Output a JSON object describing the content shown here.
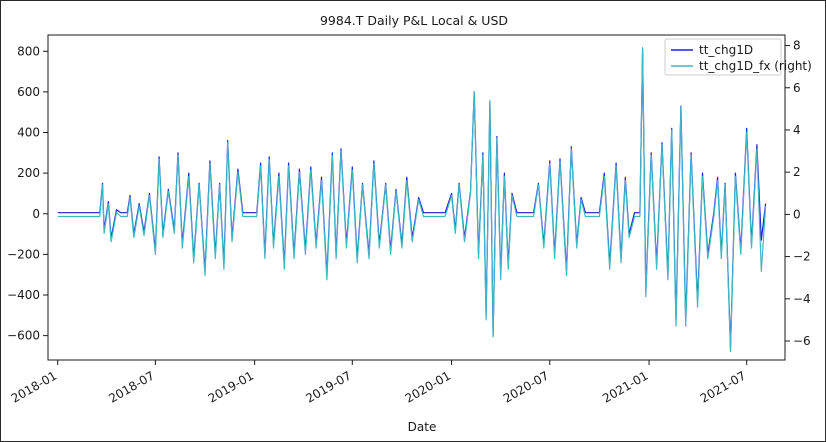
{
  "chart_data": {
    "type": "line",
    "title": "9984.T Daily P&L Local & USD",
    "xlabel": "Date",
    "ylabel": "",
    "ylim": [
      -720,
      880
    ],
    "y2lim": [
      -6.9,
      8.5
    ],
    "y_ticks": [
      "800",
      "600",
      "400",
      "200",
      "0",
      "−200",
      "−400",
      "−600"
    ],
    "y2_ticks": [
      "8",
      "6",
      "4",
      "2",
      "0",
      "−2",
      "−4",
      "−6"
    ],
    "x_ticks": [
      "2018-01",
      "2018-07",
      "2019-01",
      "2019-07",
      "2020-01",
      "2020-07",
      "2021-01",
      "2021-07"
    ],
    "legend": "top-right",
    "grid": false,
    "series": [
      {
        "name": "tt_chg1D",
        "axis": "left",
        "color": "#1f1fd8",
        "points": [
          [
            "2018-01-01",
            5
          ],
          [
            "2018-03-20",
            5
          ],
          [
            "2018-03-25",
            150
          ],
          [
            "2018-03-28",
            -80
          ],
          [
            "2018-04-05",
            60
          ],
          [
            "2018-04-10",
            -120
          ],
          [
            "2018-04-20",
            20
          ],
          [
            "2018-04-28",
            5
          ],
          [
            "2018-05-10",
            5
          ],
          [
            "2018-05-15",
            90
          ],
          [
            "2018-05-22",
            -100
          ],
          [
            "2018-06-01",
            50
          ],
          [
            "2018-06-10",
            -90
          ],
          [
            "2018-06-20",
            100
          ],
          [
            "2018-07-01",
            -180
          ],
          [
            "2018-07-08",
            280
          ],
          [
            "2018-07-15",
            -100
          ],
          [
            "2018-07-25",
            120
          ],
          [
            "2018-08-05",
            -80
          ],
          [
            "2018-08-12",
            300
          ],
          [
            "2018-08-20",
            -150
          ],
          [
            "2018-09-01",
            200
          ],
          [
            "2018-09-10",
            -220
          ],
          [
            "2018-09-20",
            150
          ],
          [
            "2018-10-01",
            -280
          ],
          [
            "2018-10-10",
            260
          ],
          [
            "2018-10-20",
            -200
          ],
          [
            "2018-10-28",
            150
          ],
          [
            "2018-11-05",
            -250
          ],
          [
            "2018-11-12",
            360
          ],
          [
            "2018-11-20",
            -120
          ],
          [
            "2018-12-01",
            220
          ],
          [
            "2018-12-10",
            5
          ],
          [
            "2019-01-05",
            5
          ],
          [
            "2019-01-12",
            250
          ],
          [
            "2019-01-20",
            -200
          ],
          [
            "2019-01-28",
            280
          ],
          [
            "2019-02-05",
            -150
          ],
          [
            "2019-02-15",
            200
          ],
          [
            "2019-02-25",
            -250
          ],
          [
            "2019-03-05",
            250
          ],
          [
            "2019-03-15",
            -200
          ],
          [
            "2019-03-25",
            220
          ],
          [
            "2019-04-05",
            -180
          ],
          [
            "2019-04-15",
            230
          ],
          [
            "2019-04-25",
            -150
          ],
          [
            "2019-05-05",
            180
          ],
          [
            "2019-05-15",
            -300
          ],
          [
            "2019-05-25",
            300
          ],
          [
            "2019-06-01",
            -200
          ],
          [
            "2019-06-10",
            320
          ],
          [
            "2019-06-20",
            -150
          ],
          [
            "2019-07-01",
            230
          ],
          [
            "2019-07-10",
            -220
          ],
          [
            "2019-07-20",
            150
          ],
          [
            "2019-08-01",
            -200
          ],
          [
            "2019-08-10",
            260
          ],
          [
            "2019-08-20",
            -150
          ],
          [
            "2019-09-01",
            150
          ],
          [
            "2019-09-10",
            -180
          ],
          [
            "2019-09-20",
            120
          ],
          [
            "2019-10-01",
            -150
          ],
          [
            "2019-10-10",
            180
          ],
          [
            "2019-10-20",
            -120
          ],
          [
            "2019-11-01",
            80
          ],
          [
            "2019-11-10",
            5
          ],
          [
            "2019-12-20",
            5
          ],
          [
            "2020-01-01",
            100
          ],
          [
            "2020-01-08",
            -80
          ],
          [
            "2020-01-15",
            150
          ],
          [
            "2020-01-25",
            -120
          ],
          [
            "2020-02-05",
            110
          ],
          [
            "2020-02-12",
            600
          ],
          [
            "2020-02-20",
            -200
          ],
          [
            "2020-02-28",
            300
          ],
          [
            "2020-03-05",
            -500
          ],
          [
            "2020-03-12",
            550
          ],
          [
            "2020-03-18",
            -600
          ],
          [
            "2020-03-25",
            380
          ],
          [
            "2020-04-01",
            -300
          ],
          [
            "2020-04-08",
            200
          ],
          [
            "2020-04-15",
            -250
          ],
          [
            "2020-04-22",
            100
          ],
          [
            "2020-05-01",
            5
          ],
          [
            "2020-06-01",
            5
          ],
          [
            "2020-06-10",
            150
          ],
          [
            "2020-06-20",
            -150
          ],
          [
            "2020-07-01",
            260
          ],
          [
            "2020-07-10",
            -200
          ],
          [
            "2020-07-20",
            270
          ],
          [
            "2020-08-01",
            -280
          ],
          [
            "2020-08-10",
            330
          ],
          [
            "2020-08-20",
            -150
          ],
          [
            "2020-08-28",
            80
          ],
          [
            "2020-09-05",
            5
          ],
          [
            "2020-10-01",
            5
          ],
          [
            "2020-10-10",
            200
          ],
          [
            "2020-10-20",
            -250
          ],
          [
            "2020-11-01",
            250
          ],
          [
            "2020-11-10",
            -220
          ],
          [
            "2020-11-18",
            180
          ],
          [
            "2020-11-25",
            -100
          ],
          [
            "2020-12-05",
            5
          ],
          [
            "2020-12-15",
            5
          ],
          [
            "2020-12-20",
            810
          ],
          [
            "2020-12-26",
            -380
          ],
          [
            "2021-01-05",
            300
          ],
          [
            "2021-01-15",
            -250
          ],
          [
            "2021-01-25",
            350
          ],
          [
            "2021-02-05",
            -300
          ],
          [
            "2021-02-12",
            420
          ],
          [
            "2021-02-20",
            -520
          ],
          [
            "2021-03-01",
            530
          ],
          [
            "2021-03-10",
            -520
          ],
          [
            "2021-03-20",
            300
          ],
          [
            "2021-04-01",
            -430
          ],
          [
            "2021-04-10",
            200
          ],
          [
            "2021-04-20",
            -200
          ],
          [
            "2021-05-01",
            5
          ],
          [
            "2021-05-08",
            180
          ],
          [
            "2021-05-15",
            -200
          ],
          [
            "2021-05-22",
            150
          ],
          [
            "2021-06-01",
            -660
          ],
          [
            "2021-06-10",
            200
          ],
          [
            "2021-06-20",
            -180
          ],
          [
            "2021-07-01",
            420
          ],
          [
            "2021-07-10",
            -150
          ],
          [
            "2021-07-20",
            340
          ],
          [
            "2021-07-28",
            -130
          ],
          [
            "2021-08-05",
            50
          ]
        ]
      },
      {
        "name": "tt_chg1D_fx (right)",
        "axis": "right",
        "color": "#3fb7c4",
        "points": [
          [
            "2018-01-01",
            -0.1
          ],
          [
            "2018-03-20",
            -0.1
          ],
          [
            "2018-03-25",
            1.4
          ],
          [
            "2018-03-28",
            -0.9
          ],
          [
            "2018-04-05",
            0.5
          ],
          [
            "2018-04-10",
            -1.3
          ],
          [
            "2018-04-20",
            0.1
          ],
          [
            "2018-04-28",
            -0.1
          ],
          [
            "2018-05-10",
            -0.1
          ],
          [
            "2018-05-15",
            0.8
          ],
          [
            "2018-05-22",
            -1.1
          ],
          [
            "2018-06-01",
            0.4
          ],
          [
            "2018-06-10",
            -1.0
          ],
          [
            "2018-06-20",
            0.9
          ],
          [
            "2018-07-01",
            -1.9
          ],
          [
            "2018-07-08",
            2.6
          ],
          [
            "2018-07-15",
            -1.1
          ],
          [
            "2018-07-25",
            1.1
          ],
          [
            "2018-08-05",
            -0.9
          ],
          [
            "2018-08-12",
            2.8
          ],
          [
            "2018-08-20",
            -1.6
          ],
          [
            "2018-09-01",
            1.8
          ],
          [
            "2018-09-10",
            -2.3
          ],
          [
            "2018-09-20",
            1.4
          ],
          [
            "2018-10-01",
            -2.9
          ],
          [
            "2018-10-10",
            2.4
          ],
          [
            "2018-10-20",
            -2.1
          ],
          [
            "2018-10-28",
            1.4
          ],
          [
            "2018-11-05",
            -2.6
          ],
          [
            "2018-11-12",
            3.4
          ],
          [
            "2018-11-20",
            -1.3
          ],
          [
            "2018-12-01",
            2.0
          ],
          [
            "2018-12-10",
            -0.1
          ],
          [
            "2019-01-05",
            -0.1
          ],
          [
            "2019-01-12",
            2.3
          ],
          [
            "2019-01-20",
            -2.1
          ],
          [
            "2019-01-28",
            2.6
          ],
          [
            "2019-02-05",
            -1.6
          ],
          [
            "2019-02-15",
            1.8
          ],
          [
            "2019-02-25",
            -2.6
          ],
          [
            "2019-03-05",
            2.3
          ],
          [
            "2019-03-15",
            -2.1
          ],
          [
            "2019-03-25",
            2.0
          ],
          [
            "2019-04-05",
            -1.9
          ],
          [
            "2019-04-15",
            2.1
          ],
          [
            "2019-04-25",
            -1.6
          ],
          [
            "2019-05-05",
            1.6
          ],
          [
            "2019-05-15",
            -3.1
          ],
          [
            "2019-05-25",
            2.8
          ],
          [
            "2019-06-01",
            -2.1
          ],
          [
            "2019-06-10",
            3.0
          ],
          [
            "2019-06-20",
            -1.6
          ],
          [
            "2019-07-01",
            2.1
          ],
          [
            "2019-07-10",
            -2.3
          ],
          [
            "2019-07-20",
            1.4
          ],
          [
            "2019-08-01",
            -2.1
          ],
          [
            "2019-08-10",
            2.4
          ],
          [
            "2019-08-20",
            -1.6
          ],
          [
            "2019-09-01",
            1.4
          ],
          [
            "2019-09-10",
            -1.9
          ],
          [
            "2019-09-20",
            1.1
          ],
          [
            "2019-10-01",
            -1.6
          ],
          [
            "2019-10-10",
            1.6
          ],
          [
            "2019-10-20",
            -1.3
          ],
          [
            "2019-11-01",
            0.7
          ],
          [
            "2019-11-10",
            -0.1
          ],
          [
            "2019-12-20",
            -0.1
          ],
          [
            "2020-01-01",
            0.9
          ],
          [
            "2020-01-08",
            -0.9
          ],
          [
            "2020-01-15",
            1.4
          ],
          [
            "2020-01-25",
            -1.3
          ],
          [
            "2020-02-05",
            1.0
          ],
          [
            "2020-02-12",
            5.8
          ],
          [
            "2020-02-20",
            -2.1
          ],
          [
            "2020-02-28",
            2.8
          ],
          [
            "2020-03-05",
            -5.0
          ],
          [
            "2020-03-12",
            5.4
          ],
          [
            "2020-03-18",
            -5.8
          ],
          [
            "2020-03-25",
            3.6
          ],
          [
            "2020-04-01",
            -3.1
          ],
          [
            "2020-04-08",
            1.8
          ],
          [
            "2020-04-15",
            -2.6
          ],
          [
            "2020-04-22",
            0.9
          ],
          [
            "2020-05-01",
            -0.1
          ],
          [
            "2020-06-01",
            -0.1
          ],
          [
            "2020-06-10",
            1.4
          ],
          [
            "2020-06-20",
            -1.6
          ],
          [
            "2020-07-01",
            2.4
          ],
          [
            "2020-07-10",
            -2.1
          ],
          [
            "2020-07-20",
            2.5
          ],
          [
            "2020-08-01",
            -2.9
          ],
          [
            "2020-08-10",
            3.1
          ],
          [
            "2020-08-20",
            -1.6
          ],
          [
            "2020-08-28",
            0.7
          ],
          [
            "2020-09-05",
            -0.1
          ],
          [
            "2020-10-01",
            -0.1
          ],
          [
            "2020-10-10",
            1.8
          ],
          [
            "2020-10-20",
            -2.6
          ],
          [
            "2020-11-01",
            2.3
          ],
          [
            "2020-11-10",
            -2.3
          ],
          [
            "2020-11-18",
            1.6
          ],
          [
            "2020-11-25",
            -1.1
          ],
          [
            "2020-12-05",
            -0.1
          ],
          [
            "2020-12-15",
            -0.1
          ],
          [
            "2020-12-20",
            7.9
          ],
          [
            "2020-12-26",
            -3.9
          ],
          [
            "2021-01-05",
            2.8
          ],
          [
            "2021-01-15",
            -2.6
          ],
          [
            "2021-01-25",
            3.3
          ],
          [
            "2021-02-05",
            -3.1
          ],
          [
            "2021-02-12",
            4.0
          ],
          [
            "2021-02-20",
            -5.3
          ],
          [
            "2021-03-01",
            5.1
          ],
          [
            "2021-03-10",
            -5.3
          ],
          [
            "2021-03-20",
            2.8
          ],
          [
            "2021-04-01",
            -4.4
          ],
          [
            "2021-04-10",
            1.8
          ],
          [
            "2021-04-20",
            -2.1
          ],
          [
            "2021-05-01",
            -0.1
          ],
          [
            "2021-05-08",
            1.6
          ],
          [
            "2021-05-15",
            -2.1
          ],
          [
            "2021-05-22",
            1.4
          ],
          [
            "2021-06-01",
            -6.5
          ],
          [
            "2021-06-10",
            1.8
          ],
          [
            "2021-06-20",
            -1.9
          ],
          [
            "2021-07-01",
            3.9
          ],
          [
            "2021-07-10",
            -1.6
          ],
          [
            "2021-07-20",
            3.1
          ],
          [
            "2021-07-28",
            -2.7
          ],
          [
            "2021-08-05",
            0.4
          ]
        ]
      }
    ]
  }
}
